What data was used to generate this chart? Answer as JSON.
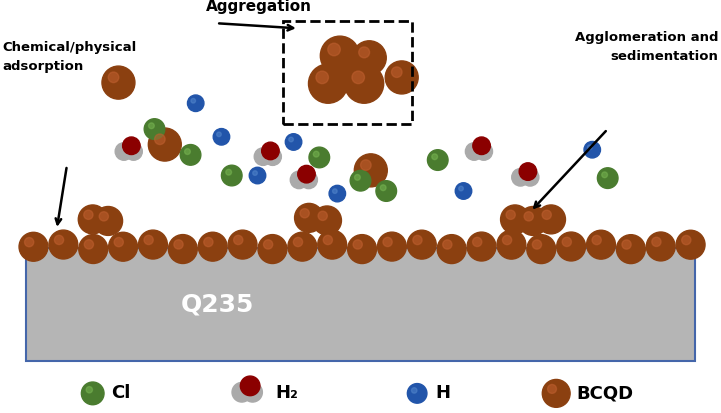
{
  "bcqd_color": "#8B4010",
  "bcqd_highlight": "#c06030",
  "cl_color": "#4a7c2f",
  "cl_highlight": "#7ab854",
  "h2_color": "#8B0000",
  "h2_gray": "#aaaaaa",
  "h_color": "#2255aa",
  "h_highlight": "#5588cc",
  "steel_color": "#b5b5b5",
  "steel_edge": "#4466aa",
  "bg_color": "#ffffff",
  "title": "Q235",
  "label_aggregation": "Aggregation",
  "label_chem": "Chemical/physical\nadsorption",
  "label_agglom": "Agglomeration and\nsedimentation",
  "legend_cl": "Cl",
  "legend_h2": "H₂",
  "legend_h": "H",
  "legend_bcqd": "BCQD",
  "xlim": [
    0,
    14.0
  ],
  "ylim": [
    0,
    8.0
  ]
}
